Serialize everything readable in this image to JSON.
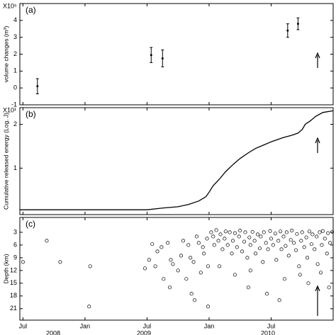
{
  "chart_data": [
    {
      "type": "errorbar",
      "panel_label": "(a)",
      "multiplier": "X10⁵",
      "ylabel": "volume changes (m³)",
      "xlim": [
        -0.3,
        30
      ],
      "xticks": [
        0,
        6,
        12,
        18,
        24
      ],
      "ylim": [
        -1,
        5
      ],
      "yticks": [
        -1,
        0,
        1,
        2,
        3,
        4
      ],
      "x": [
        1.4,
        12.4,
        13.5,
        25.6,
        26.6
      ],
      "values": [
        0.1,
        1.95,
        1.75,
        3.4,
        3.8
      ],
      "errors": [
        0.45,
        0.45,
        0.5,
        0.4,
        0.35
      ],
      "color": "#000000"
    },
    {
      "type": "line",
      "panel_label": "(b)",
      "multiplier": "X10¹",
      "ylabel": "Cumulative released energy (Log. J)",
      "xlim": [
        -0.3,
        30
      ],
      "xticks": [
        0,
        6,
        12,
        18,
        24
      ],
      "ylim": [
        -0.06,
        2.38
      ],
      "yticks": [
        1,
        2
      ],
      "x": [
        -0.3,
        12,
        13.5,
        15,
        16,
        17,
        17.7,
        18,
        18.4,
        19,
        19.6,
        20.4,
        21,
        21.8,
        22.5,
        23.2,
        24,
        25.2,
        26,
        26.6,
        27,
        27.3,
        27.8,
        28.3,
        29,
        30
      ],
      "values": [
        0.05,
        0.05,
        0.09,
        0.12,
        0.17,
        0.25,
        0.35,
        0.45,
        0.6,
        0.75,
        0.92,
        1.1,
        1.22,
        1.35,
        1.45,
        1.52,
        1.6,
        1.7,
        1.75,
        1.8,
        1.88,
        2.0,
        2.08,
        2.18,
        2.27,
        2.31
      ],
      "color": "#000000"
    },
    {
      "type": "scatter",
      "panel_label": "(c)",
      "ylabel": "Depth (km)",
      "xlim": [
        -0.3,
        30
      ],
      "xticks": [
        {
          "value": 0,
          "label": "Jul"
        },
        {
          "value": 6,
          "label": "Jan"
        },
        {
          "value": 12,
          "label": "Jul"
        },
        {
          "value": 18,
          "label": "Jan"
        },
        {
          "value": 24,
          "label": "Jul"
        }
      ],
      "year_labels": [
        "2008",
        "2009",
        "2010"
      ],
      "ylim": [
        23.7,
        -0.5
      ],
      "yticks": [
        3,
        6,
        9,
        12,
        15,
        18,
        21
      ],
      "color": "#000000",
      "x": [
        18.2,
        18.4,
        18.5,
        18.7,
        18.9,
        19.1,
        19.3,
        19.5,
        19.6,
        19.8,
        20,
        20.2,
        20.3,
        20.5,
        20.7,
        20.9,
        21,
        21.2,
        21.4,
        21.5,
        21.7,
        21.9,
        22,
        22.2,
        22.4,
        22.5,
        22.7,
        22.9,
        23,
        23.2,
        23.3,
        23.5,
        23.7,
        23.9,
        24,
        24.2,
        24.4,
        24.5,
        24.7,
        24.9,
        25,
        25.2,
        25.4,
        25.5,
        25.7,
        25.9,
        26,
        26.2,
        26.4,
        26.5,
        26.7,
        26.9,
        27,
        27.2,
        27.4,
        27.5,
        27.7,
        27.9,
        28,
        28.2,
        28.4,
        28.5,
        28.7,
        28.9,
        29,
        29.2,
        29.4,
        29.5,
        29.7,
        29.9,
        19,
        20.5,
        22,
        23.6,
        25.3,
        26.8,
        27.6,
        28.8,
        29.6,
        21.8,
        24.8,
        14,
        14.3,
        14.5,
        14.2,
        15,
        15.3,
        15.8,
        16,
        16.2,
        16.5,
        16.3,
        16.6,
        17,
        17.2,
        17.5,
        17.8,
        17.9,
        15.5,
        16.8,
        17.4,
        0,
        2.3,
        3.6,
        6.5,
        6.4,
        17.9,
        11.8,
        12.2,
        12.5,
        13,
        13.4,
        12.8,
        13.6
      ],
      "values": [
        3,
        4,
        6,
        2.5,
        5,
        3.5,
        7,
        4.5,
        2.8,
        6,
        3,
        8,
        5,
        3.2,
        6.5,
        4,
        2.6,
        7.5,
        5.2,
        3,
        9,
        4.2,
        6,
        2.9,
        5,
        8,
        3.5,
        6.8,
        4,
        10,
        3,
        5.5,
        7,
        2.7,
        4.5,
        6,
        3.3,
        9.5,
        5,
        2.8,
        7,
        4,
        6.2,
        3,
        8.5,
        4.8,
        2.6,
        5.5,
        7.2,
        3.4,
        11,
        5,
        3,
        6.5,
        4.2,
        9,
        2.8,
        5.8,
        3.5,
        7,
        4,
        10.5,
        3,
        6,
        2.7,
        4.5,
        8,
        3.2,
        5.5,
        2.9,
        11,
        13,
        12,
        17.5,
        14,
        13,
        15,
        12.5,
        16,
        16,
        19,
        5.5,
        9.5,
        10.5,
        16,
        12,
        8.5,
        14,
        6,
        9,
        10,
        17.5,
        19,
        5.5,
        12.5,
        8,
        4.5,
        11,
        5,
        4,
        6.5,
        10,
        5,
        10,
        11,
        20.5,
        20.5,
        11.5,
        9.5,
        5.8,
        7.5,
        6.5,
        11,
        14
      ]
    }
  ]
}
